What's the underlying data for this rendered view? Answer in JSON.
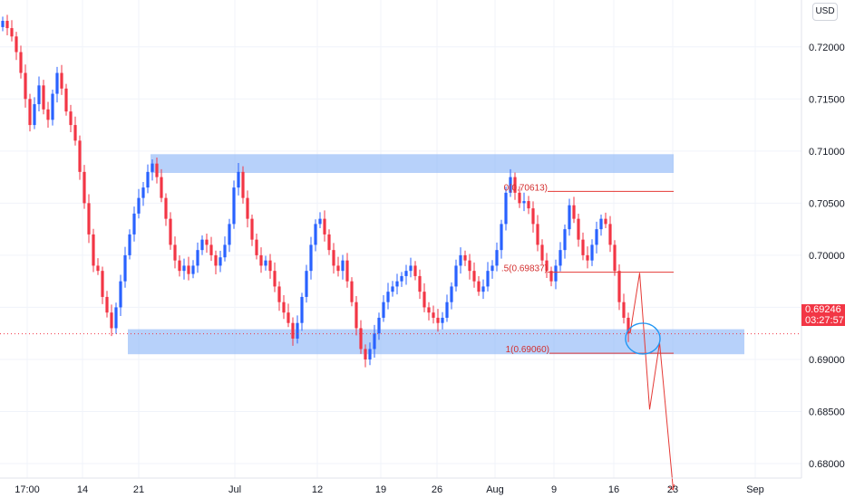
{
  "currency": "USD",
  "current_price": "0.69246",
  "countdown": "03:27:57",
  "fib_labels": [
    "0(0.70613)",
    ".5(0.69837)",
    "1(0.69060)"
  ],
  "colors": {
    "up": "#2962ff",
    "down": "#f23645",
    "zone": "#90b8f8",
    "projection": "#e53935",
    "circle": "#2196f3"
  },
  "chart_data": {
    "type": "candlestick",
    "x_tick_labels": [
      "17:00",
      "14",
      "21",
      "Jul",
      "12",
      "19",
      "26",
      "Aug",
      "9",
      "16",
      "23",
      "Sep"
    ],
    "y_tick_labels": [
      "0.72000",
      "0.71500",
      "0.71000",
      "0.70500",
      "0.70000",
      "0.69500",
      "0.69000",
      "0.68500",
      "0.68000"
    ],
    "y_ticks": [
      0.72,
      0.715,
      0.71,
      0.705,
      0.7,
      0.695,
      0.69,
      0.685,
      0.68
    ],
    "ylim": [
      0.6767,
      0.7245
    ],
    "resistance_zone": [
      0.7079,
      0.7097
    ],
    "support_zone": [
      0.6905,
      0.6929
    ],
    "fib_levels": [
      0.70613,
      0.69837,
      0.6906
    ],
    "last_price": 0.69246,
    "close_path": [
      0.7225,
      0.7218,
      0.721,
      0.7195,
      0.7175,
      0.715,
      0.7125,
      0.7145,
      0.7163,
      0.714,
      0.713,
      0.7155,
      0.7175,
      0.716,
      0.7138,
      0.7125,
      0.711,
      0.708,
      0.705,
      0.702,
      0.699,
      0.6985,
      0.696,
      0.6945,
      0.693,
      0.695,
      0.6975,
      0.7,
      0.702,
      0.704,
      0.7055,
      0.7065,
      0.708,
      0.7088,
      0.7075,
      0.7055,
      0.7035,
      0.701,
      0.6995,
      0.6985,
      0.699,
      0.6982,
      0.699,
      0.7005,
      0.7015,
      0.701,
      0.7,
      0.699,
      0.6998,
      0.701,
      0.703,
      0.7065,
      0.708,
      0.7055,
      0.7035,
      0.7015,
      0.7,
      0.699,
      0.6995,
      0.6985,
      0.697,
      0.6955,
      0.6945,
      0.6935,
      0.692,
      0.6935,
      0.696,
      0.6985,
      0.701,
      0.703,
      0.7035,
      0.702,
      0.7005,
      0.699,
      0.6985,
      0.6995,
      0.6975,
      0.6955,
      0.693,
      0.691,
      0.69,
      0.691,
      0.6925,
      0.694,
      0.6955,
      0.6965,
      0.697,
      0.6975,
      0.698,
      0.6985,
      0.699,
      0.698,
      0.6965,
      0.695,
      0.6945,
      0.694,
      0.6935,
      0.694,
      0.6955,
      0.697,
      0.699,
      0.7,
      0.6995,
      0.6985,
      0.6975,
      0.6965,
      0.697,
      0.6985,
      0.699,
      0.7005,
      0.703,
      0.706,
      0.7075,
      0.706,
      0.705,
      0.7052,
      0.7045,
      0.703,
      0.701,
      0.6995,
      0.6985,
      0.6975,
      0.699,
      0.7005,
      0.7025,
      0.7048,
      0.7035,
      0.7015,
      0.7,
      0.6995,
      0.701,
      0.7025,
      0.7035,
      0.703,
      0.701,
      0.6985,
      0.6955,
      0.694,
      0.6925
    ],
    "projection": {
      "type": "line",
      "x_days_from_last_candle": [
        0.4,
        2.5,
        4.7,
        6.9,
        9.9
      ],
      "y": [
        0.6925,
        0.6983,
        0.6852,
        0.6916,
        0.6775
      ]
    }
  }
}
